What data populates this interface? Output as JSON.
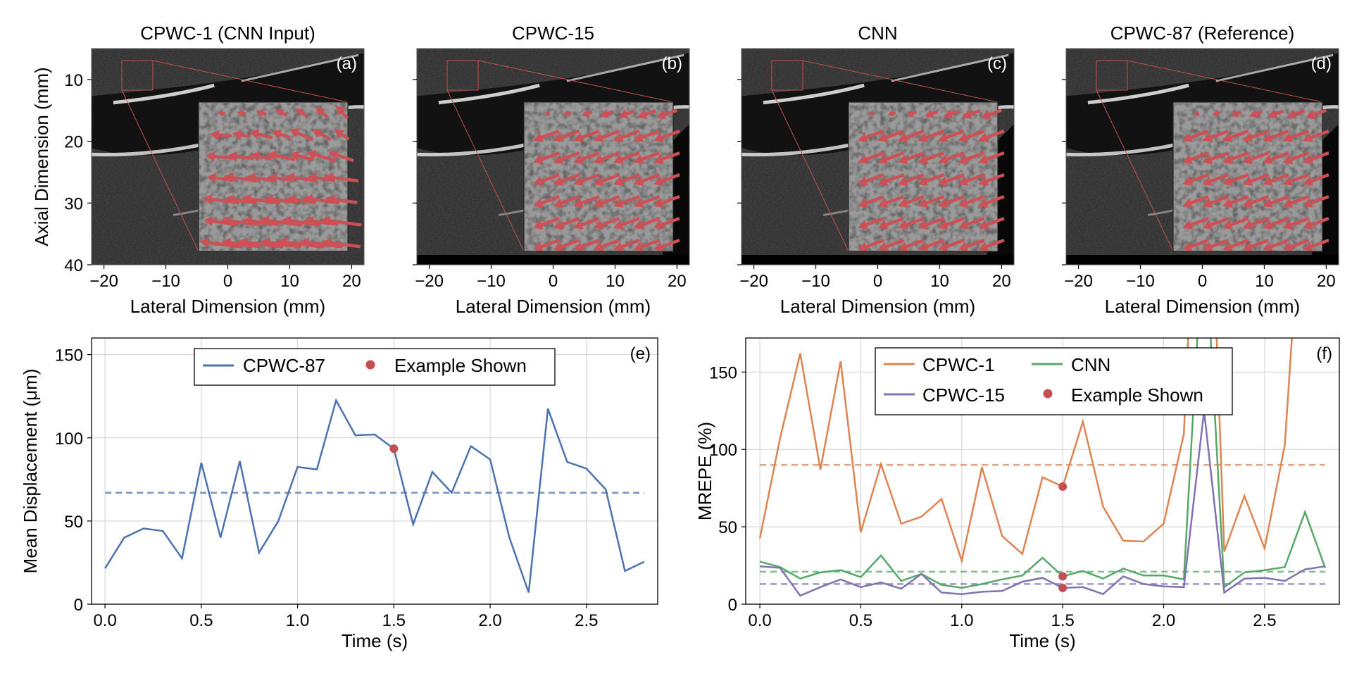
{
  "figure": {
    "panels_top": [
      {
        "id": "a",
        "title": "CPWC-1 (CNN Input)",
        "label": "(a)",
        "xlabel": "Lateral Dimension (mm)",
        "ylabel": "Axial Dimension (mm)",
        "xticks": [
          "−20",
          "−10",
          "0",
          "10",
          "20"
        ],
        "yticks": [
          "10",
          "20",
          "30",
          "40"
        ],
        "arrow_style": "noisy"
      },
      {
        "id": "b",
        "title": "CPWC-15",
        "label": "(b)",
        "xlabel": "Lateral Dimension (mm)",
        "xticks": [
          "−20",
          "−10",
          "0",
          "10",
          "20"
        ],
        "arrow_style": "smooth"
      },
      {
        "id": "c",
        "title": "CNN",
        "label": "(c)",
        "xlabel": "Lateral Dimension (mm)",
        "xticks": [
          "−20",
          "−10",
          "0",
          "10",
          "20"
        ],
        "arrow_style": "smooth"
      },
      {
        "id": "d",
        "title": "CPWC-87 (Reference)",
        "label": "(d)",
        "xlabel": "Lateral Dimension (mm)",
        "xticks": [
          "−20",
          "−10",
          "0",
          "10",
          "20"
        ],
        "arrow_style": "smooth"
      }
    ],
    "colors": {
      "arrow": "#cc5055",
      "zoom_box": "#c0504d",
      "example_marker": "#c44e52",
      "cpwc87": "#4c72b0",
      "cpwc1": "#dd8452",
      "cnn": "#55a868",
      "cpwc15": "#8172b3",
      "grid": "#d0d0d0"
    }
  },
  "chart_data": [
    {
      "id": "e",
      "type": "line",
      "panel_label": "(e)",
      "xlabel": "Time (s)",
      "ylabel": "Mean Displacement (μm)",
      "xlim": [
        -0.07,
        2.87
      ],
      "ylim": [
        0,
        160
      ],
      "xticks": [
        0.0,
        0.5,
        1.0,
        1.5,
        2.0,
        2.5
      ],
      "xtick_labels": [
        "0.0",
        "0.5",
        "1.0",
        "1.5",
        "2.0",
        "2.5"
      ],
      "yticks": [
        0,
        50,
        100,
        150
      ],
      "ytick_labels": [
        "0",
        "50",
        "100",
        "150"
      ],
      "grid": true,
      "legend_position": "top-center",
      "legend": [
        {
          "label": "CPWC-87",
          "kind": "line",
          "series": "cpwc87"
        },
        {
          "label": "Example Shown",
          "kind": "marker"
        }
      ],
      "x": [
        0.0,
        0.1,
        0.2,
        0.3,
        0.4,
        0.5,
        0.6,
        0.7,
        0.8,
        0.9,
        1.0,
        1.1,
        1.2,
        1.3,
        1.4,
        1.5,
        1.6,
        1.7,
        1.8,
        1.9,
        2.0,
        2.1,
        2.2,
        2.3,
        2.4,
        2.5,
        2.6,
        2.7,
        2.8
      ],
      "series": [
        {
          "name": "CPWC-87",
          "key": "cpwc87",
          "values": [
            21.5,
            40,
            45.5,
            44,
            27.5,
            85,
            40,
            86,
            31,
            50,
            82.5,
            81,
            122.5,
            101.5,
            102,
            93.5,
            48,
            79.5,
            67,
            95,
            87,
            40,
            7,
            117.5,
            85.5,
            81.5,
            69,
            20,
            25.5
          ],
          "mean": 67
        }
      ],
      "example": {
        "x": 1.5,
        "points": [
          {
            "series": "cpwc87",
            "value": 93.5
          }
        ]
      }
    },
    {
      "id": "f",
      "type": "line",
      "panel_label": "(f)",
      "xlabel": "Time (s)",
      "ylabel": "MREPE (%)",
      "xlim": [
        -0.07,
        2.87
      ],
      "ylim": [
        0,
        172
      ],
      "xticks": [
        0.0,
        0.5,
        1.0,
        1.5,
        2.0,
        2.5
      ],
      "xtick_labels": [
        "0.0",
        "0.5",
        "1.0",
        "1.5",
        "2.0",
        "2.5"
      ],
      "yticks": [
        0,
        50,
        100,
        150
      ],
      "ytick_labels": [
        "0",
        "50",
        "100",
        "150"
      ],
      "grid": true,
      "legend_position": "top-center",
      "legend": [
        {
          "label": "CPWC-1",
          "kind": "line",
          "series": "cpwc1"
        },
        {
          "label": "CNN",
          "kind": "line",
          "series": "cnn"
        },
        {
          "label": "CPWC-15",
          "kind": "line",
          "series": "cpwc15"
        },
        {
          "label": "Example Shown",
          "kind": "marker"
        }
      ],
      "x": [
        0.0,
        0.1,
        0.2,
        0.3,
        0.4,
        0.5,
        0.6,
        0.7,
        0.8,
        0.9,
        1.0,
        1.1,
        1.2,
        1.3,
        1.4,
        1.5,
        1.6,
        1.7,
        1.8,
        1.9,
        2.0,
        2.1,
        2.2,
        2.3,
        2.4,
        2.5,
        2.6,
        2.7,
        2.8
      ],
      "series": [
        {
          "name": "CPWC-1",
          "key": "cpwc1",
          "values": [
            42.5,
            107,
            162,
            87,
            157,
            46.5,
            90.5,
            52,
            56.5,
            68,
            28,
            88.5,
            44,
            32.5,
            82,
            76,
            118,
            63,
            41,
            40.5,
            52,
            110,
            400,
            34,
            70,
            36,
            103,
            300,
            300
          ],
          "mean": 90
        },
        {
          "name": "CNN",
          "key": "cnn",
          "values": [
            27.5,
            24,
            16.5,
            20.5,
            22,
            17.5,
            31.5,
            15,
            19.5,
            12.5,
            10.5,
            13,
            16,
            18.5,
            30,
            18,
            21.5,
            16.5,
            23,
            18.5,
            18.5,
            16,
            250,
            11,
            20.5,
            22,
            24,
            59.5,
            23.5
          ],
          "mean": 21
        },
        {
          "name": "CPWC-15",
          "key": "cpwc15",
          "values": [
            24.5,
            23.5,
            5.5,
            11,
            16,
            11,
            14,
            10,
            19.5,
            7.5,
            6.5,
            8,
            8.5,
            14.5,
            17,
            10.5,
            11,
            6.5,
            18,
            13,
            11.5,
            11,
            125,
            7.5,
            16.5,
            17,
            15,
            22.5,
            24.5
          ],
          "mean": 13
        }
      ],
      "example": {
        "x": 1.5,
        "points": [
          {
            "series": "cpwc1",
            "value": 76
          },
          {
            "series": "cnn",
            "value": 18
          },
          {
            "series": "cpwc15",
            "value": 10.5
          }
        ]
      }
    }
  ]
}
